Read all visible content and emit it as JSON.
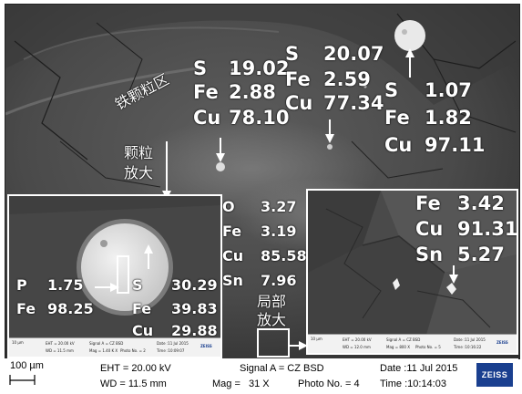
{
  "main": {
    "labels": {
      "iron_region": "铁颗粒区",
      "particle_zoom": [
        "颗粒",
        "放大"
      ],
      "local_zoom": [
        "局部",
        "放大"
      ]
    },
    "point_a": {
      "rows": [
        [
          "S",
          "19.02"
        ],
        [
          "Fe",
          "2.88"
        ],
        [
          "Cu",
          "78.10"
        ]
      ]
    },
    "point_b": {
      "rows": [
        [
          "S",
          "20.07"
        ],
        [
          "Fe",
          "2.59"
        ],
        [
          "Cu",
          "77.34"
        ]
      ]
    },
    "point_c": {
      "rows": [
        [
          "S",
          "1.07"
        ],
        [
          "Fe",
          "1.82"
        ],
        [
          "Cu",
          "97.11"
        ]
      ]
    },
    "point_d": {
      "rows": [
        [
          "O",
          "3.27"
        ],
        [
          "Fe",
          "3.19"
        ],
        [
          "Cu",
          "85.58"
        ],
        [
          "Sn",
          "7.96"
        ]
      ]
    }
  },
  "inset_left": {
    "particle": {
      "rows": [
        [
          "P",
          "1.75"
        ],
        [
          "Fe",
          "98.25"
        ]
      ]
    },
    "matrix": {
      "rows": [
        [
          "S",
          "30.29"
        ],
        [
          "Fe",
          "39.83"
        ],
        [
          "Cu",
          "29.88"
        ]
      ]
    },
    "bar": {
      "scale": "10 µm",
      "eht": "EHT = 20.00 kV",
      "wd": "WD = 11.5 mm",
      "signal": "Signal A = CZ BSD",
      "mag": "Mag = 1.40 K X",
      "photo": "Photo No. = 2",
      "date": "Date :11 Jul 2015",
      "time": "Time :10:09:07",
      "logo": "ZEISS"
    }
  },
  "inset_right": {
    "rows": [
      [
        "Fe",
        "3.42"
      ],
      [
        "Cu",
        "91.31"
      ],
      [
        "Sn",
        "5.27"
      ]
    ],
    "bar": {
      "scale": "10 µm",
      "eht": "EHT = 20.00 kV",
      "wd": "WD = 12.0 mm",
      "signal": "Signal A = CZ BSD",
      "mag": "Mag = 800 X",
      "photo": "Photo No. = 5",
      "date": "Date :11 Jul 2015",
      "time": "Time :10:16:22",
      "logo": "ZEISS"
    }
  },
  "footer": {
    "scale": "100 µm",
    "eht": "EHT = 20.00 kV",
    "wd": "WD = 11.5 mm",
    "signal": "Signal A = CZ BSD",
    "mag_label": "Mag =",
    "mag_value": "31 X",
    "photo": "Photo No. = 4",
    "date": "Date :11 Jul 2015",
    "time": "Time :10:14:03",
    "logo": "ZEISS"
  },
  "colors": {
    "label": "#ffffff",
    "logo_bg": "#1a3f8f"
  }
}
